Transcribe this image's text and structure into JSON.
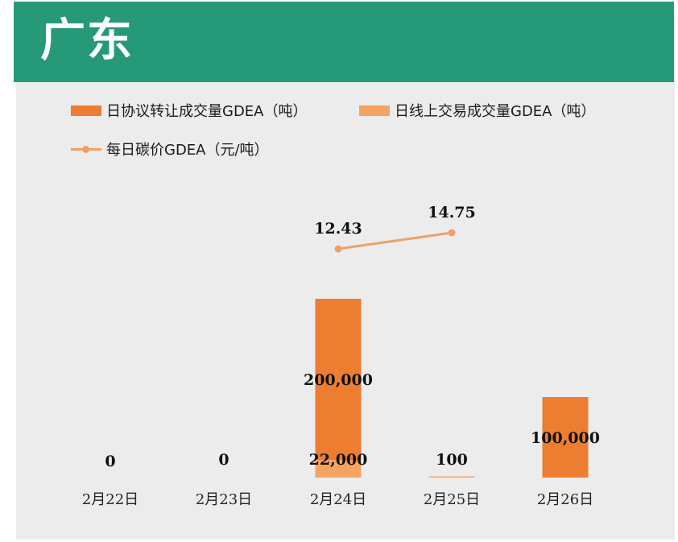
{
  "header": {
    "title": "广东"
  },
  "colors": {
    "header_bg": "#269a78",
    "panel_bg": "#ececec",
    "agreement": "#ed7d31",
    "online": "#f4a460",
    "price": "#f0a064"
  },
  "chart_data": {
    "type": "bar",
    "categories": [
      "2月22日",
      "2月23日",
      "2月24日",
      "2月25日",
      "2月26日"
    ],
    "series": [
      {
        "name": "日协议转让成交量GDEA（吨）",
        "type": "bar",
        "values": [
          0,
          0,
          200000,
          0,
          100000
        ],
        "labels": [
          "0",
          "0",
          "200,000",
          "",
          "100,000"
        ]
      },
      {
        "name": "日线上交易成交量GDEA（吨）",
        "type": "bar",
        "values": [
          0,
          0,
          22000,
          100,
          0
        ],
        "labels": [
          "",
          "",
          "22,000",
          "100",
          ""
        ]
      },
      {
        "name": "每日碳价GDEA（元/吨）",
        "type": "line",
        "values": [
          null,
          null,
          12.43,
          14.75,
          null
        ],
        "labels": [
          "",
          "",
          "12.43",
          "14.75",
          ""
        ]
      }
    ],
    "legend": "top-left",
    "grid": false
  }
}
